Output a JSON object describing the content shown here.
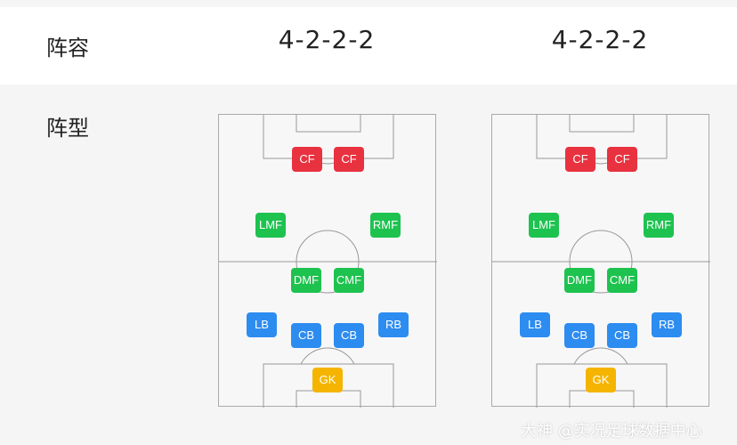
{
  "lineup_label": "阵容",
  "shape_label": "阵型",
  "teams": [
    {
      "formation": "4-2-2-2",
      "players": [
        {
          "pos": "CF",
          "role": "forward"
        },
        {
          "pos": "CF",
          "role": "forward"
        },
        {
          "pos": "LMF",
          "role": "midfield"
        },
        {
          "pos": "RMF",
          "role": "midfield"
        },
        {
          "pos": "DMF",
          "role": "midfield"
        },
        {
          "pos": "CMF",
          "role": "midfield"
        },
        {
          "pos": "LB",
          "role": "defense"
        },
        {
          "pos": "CB",
          "role": "defense"
        },
        {
          "pos": "CB",
          "role": "defense"
        },
        {
          "pos": "RB",
          "role": "defense"
        },
        {
          "pos": "GK",
          "role": "keeper"
        }
      ]
    },
    {
      "formation": "4-2-2-2",
      "players": [
        {
          "pos": "CF",
          "role": "forward"
        },
        {
          "pos": "CF",
          "role": "forward"
        },
        {
          "pos": "LMF",
          "role": "midfield"
        },
        {
          "pos": "RMF",
          "role": "midfield"
        },
        {
          "pos": "DMF",
          "role": "midfield"
        },
        {
          "pos": "CMF",
          "role": "midfield"
        },
        {
          "pos": "LB",
          "role": "defense"
        },
        {
          "pos": "CB",
          "role": "defense"
        },
        {
          "pos": "CB",
          "role": "defense"
        },
        {
          "pos": "RB",
          "role": "defense"
        },
        {
          "pos": "GK",
          "role": "keeper"
        }
      ]
    }
  ],
  "colors": {
    "forward": "#e8323f",
    "midfield": "#1ec24f",
    "defense": "#2d8cf0",
    "keeper": "#f5b400"
  },
  "watermark": "大神 @实况足球数据中心"
}
